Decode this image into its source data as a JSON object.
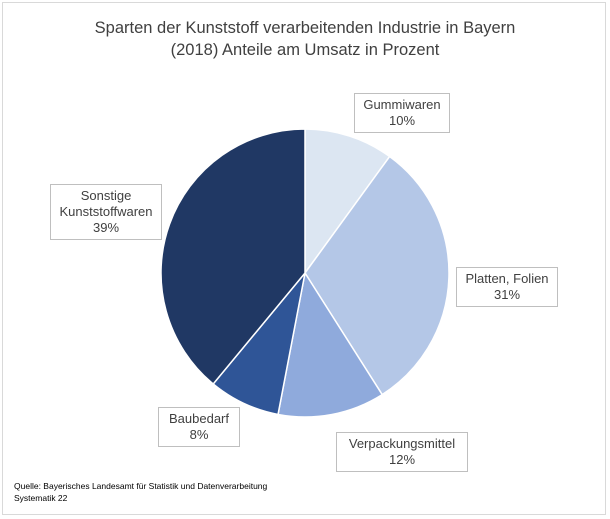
{
  "chart_data": {
    "type": "pie",
    "title_line1": "Sparten der Kunststoff verarbeitenden Industrie in Bayern",
    "title_line2": "(2018) Anteile am Umsatz in Prozent",
    "slices": [
      {
        "label": "Gummiwaren",
        "value": 10,
        "value_label": "10%",
        "color": "#dce6f2"
      },
      {
        "label": "Platten, Folien",
        "value": 31,
        "value_label": "31%",
        "color": "#b4c7e7"
      },
      {
        "label": "Verpackungsmittel",
        "value": 12,
        "value_label": "12%",
        "color": "#8faadc"
      },
      {
        "label": "Baubedarf",
        "value": 8,
        "value_label": "8%",
        "color": "#2f5597"
      },
      {
        "label_line1": "Sonstige",
        "label_line2": "Kunststoffwaren",
        "value": 39,
        "value_label": "39%",
        "color": "#203864"
      }
    ]
  },
  "source": {
    "line1": "Quelle:  Bayerisches Landesamt für Statistik und Datenverarbeitung",
    "line2": "Systematik 22"
  }
}
